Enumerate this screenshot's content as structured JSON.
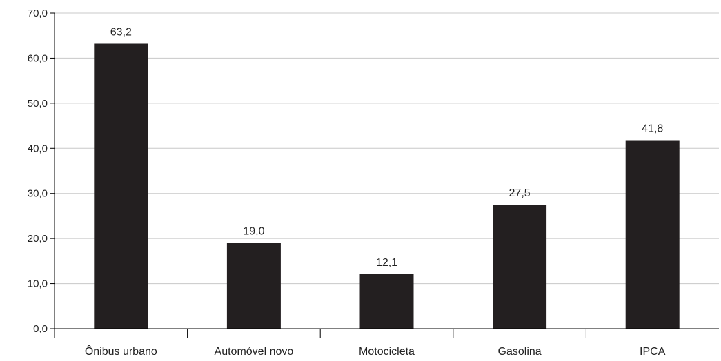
{
  "chart_data": {
    "type": "bar",
    "categories": [
      "Ônibus urbano",
      "Automóvel novo",
      "Motocicleta",
      "Gasolina",
      "IPCA"
    ],
    "values": [
      63.2,
      19.0,
      12.1,
      27.5,
      41.8
    ],
    "value_labels": [
      "63,2",
      "19,0",
      "12,1",
      "27,5",
      "41,8"
    ],
    "title": "",
    "xlabel": "",
    "ylabel": "",
    "ylim": [
      0,
      70
    ],
    "y_ticks": [
      0,
      10,
      20,
      30,
      40,
      50,
      60,
      70
    ],
    "y_tick_labels": [
      "0,0",
      "10,0",
      "20,0",
      "30,0",
      "40,0",
      "50,0",
      "60,0",
      "70,0"
    ],
    "grid": true,
    "bar_color": "#231f20",
    "grid_color": "#c8c8c8"
  }
}
